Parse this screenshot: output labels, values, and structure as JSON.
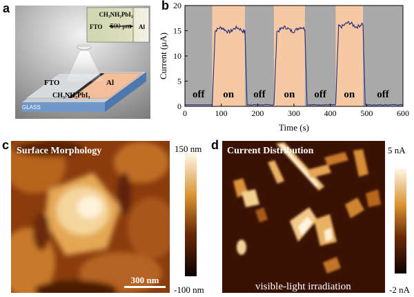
{
  "panels": {
    "a": {
      "letter": "a",
      "inset_material": "CH₃NH₃PbI₃",
      "inset_left": "FTO",
      "inset_scale": "500 μm",
      "inset_right": "Al",
      "label_fto": "FTO",
      "label_al": "Al",
      "label_material": "CH₃NH₃PbI₃",
      "label_glass": "GLASS"
    },
    "b": {
      "letter": "b"
    },
    "c": {
      "letter": "c",
      "title": "Surface Morphology",
      "scale_bar": "300 nm",
      "colorbar_max": "150 nm",
      "colorbar_min": "-100 nm"
    },
    "d": {
      "letter": "d",
      "title": "Current Distribution",
      "caption": "visible-light irradiation",
      "colorbar_max": "5 nA",
      "colorbar_min": "-2 nA"
    }
  },
  "chart_data": {
    "type": "line",
    "xlabel": "Time (s)",
    "ylabel": "Current (μA)",
    "xlim": [
      0,
      600
    ],
    "ylim": [
      0,
      20
    ],
    "xticks": [
      0,
      100,
      200,
      300,
      400,
      500,
      600
    ],
    "yticks": [
      0,
      5,
      10,
      15,
      20
    ],
    "states": [
      {
        "label": "off",
        "start": 0,
        "end": 75,
        "level": 0.3
      },
      {
        "label": "on",
        "start": 75,
        "end": 165,
        "level": 15.2
      },
      {
        "label": "off",
        "start": 165,
        "end": 245,
        "level": 0.3
      },
      {
        "label": "on",
        "start": 245,
        "end": 330,
        "level": 15.3
      },
      {
        "label": "off",
        "start": 330,
        "end": 415,
        "level": 0.3
      },
      {
        "label": "on",
        "start": 415,
        "end": 490,
        "level": 16.2
      },
      {
        "label": "off",
        "start": 490,
        "end": 600,
        "level": 0.3
      }
    ],
    "colors": {
      "on": "#f6c9a4",
      "off": "#a9a9a9",
      "line": "#1f2a7a"
    }
  }
}
